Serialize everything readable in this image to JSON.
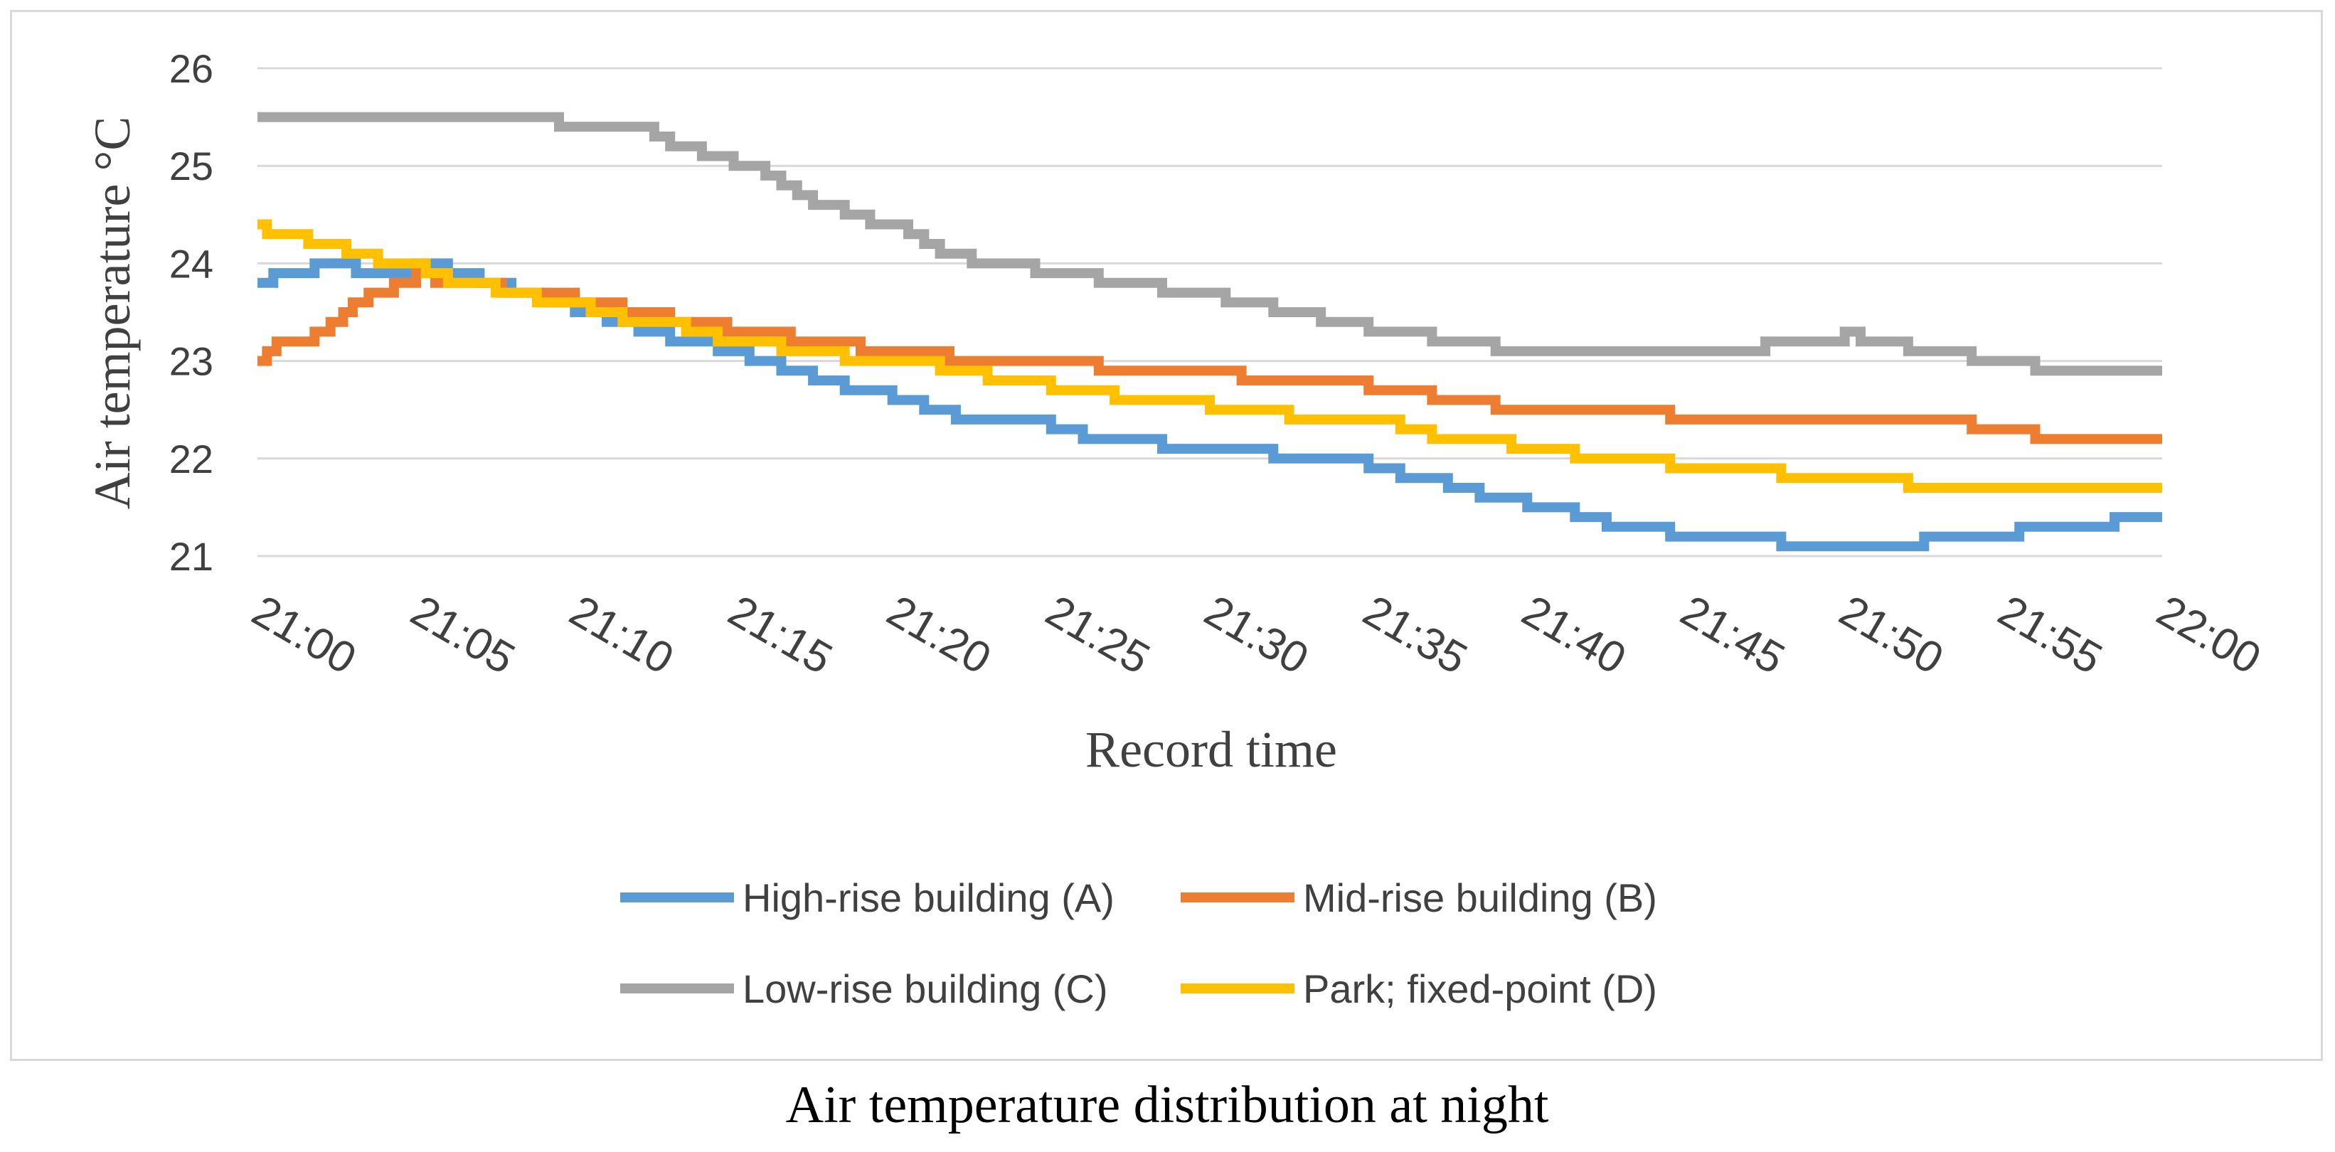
{
  "chart_data": {
    "type": "line",
    "title": "",
    "caption": "Air temperature distribution at night",
    "xlabel": "Record time",
    "ylabel": "Air temperature °C",
    "ylim": [
      21,
      26
    ],
    "yticks": [
      "21",
      "22",
      "23",
      "24",
      "25",
      "26"
    ],
    "x_ticks": [
      "21:00",
      "21:05",
      "21:10",
      "21:15",
      "21:20",
      "21:25",
      "21:30",
      "21:35",
      "21:40",
      "21:45",
      "21:50",
      "21:55",
      "22:00"
    ],
    "x_range_minutes": [
      0,
      60
    ],
    "grid": true,
    "legend_position": "bottom",
    "series": [
      {
        "name": "High-rise building (A)",
        "color": "#5b9bd5",
        "points": [
          [
            0,
            23.8
          ],
          [
            0.5,
            23.9
          ],
          [
            1.8,
            24.0
          ],
          [
            3.1,
            23.9
          ],
          [
            5.0,
            24.0
          ],
          [
            6.0,
            23.9
          ],
          [
            7.0,
            23.8
          ],
          [
            8.0,
            23.7
          ],
          [
            9.0,
            23.6
          ],
          [
            10.0,
            23.5
          ],
          [
            11.0,
            23.4
          ],
          [
            12.0,
            23.3
          ],
          [
            13.0,
            23.2
          ],
          [
            14.5,
            23.1
          ],
          [
            15.5,
            23.0
          ],
          [
            16.5,
            22.9
          ],
          [
            17.5,
            22.8
          ],
          [
            18.5,
            22.7
          ],
          [
            20.0,
            22.6
          ],
          [
            21.0,
            22.5
          ],
          [
            22.0,
            22.4
          ],
          [
            25.0,
            22.3
          ],
          [
            26.0,
            22.2
          ],
          [
            28.5,
            22.1
          ],
          [
            32.0,
            22.0
          ],
          [
            35.0,
            21.9
          ],
          [
            36.0,
            21.8
          ],
          [
            37.5,
            21.7
          ],
          [
            38.5,
            21.6
          ],
          [
            40.0,
            21.5
          ],
          [
            41.5,
            21.4
          ],
          [
            42.5,
            21.3
          ],
          [
            44.5,
            21.2
          ],
          [
            48.0,
            21.1
          ],
          [
            52.5,
            21.2
          ],
          [
            55.5,
            21.3
          ],
          [
            58.5,
            21.4
          ],
          [
            60.0,
            21.4
          ]
        ]
      },
      {
        "name": "Mid-rise building (B)",
        "color": "#ed7d31",
        "points": [
          [
            0,
            23.0
          ],
          [
            0.3,
            23.1
          ],
          [
            0.6,
            23.2
          ],
          [
            1.8,
            23.3
          ],
          [
            2.3,
            23.4
          ],
          [
            2.7,
            23.5
          ],
          [
            3.0,
            23.6
          ],
          [
            3.5,
            23.7
          ],
          [
            4.3,
            23.8
          ],
          [
            5.0,
            23.9
          ],
          [
            5.6,
            23.8
          ],
          [
            7.7,
            23.7
          ],
          [
            10.0,
            23.6
          ],
          [
            11.5,
            23.5
          ],
          [
            13.0,
            23.4
          ],
          [
            14.8,
            23.3
          ],
          [
            16.8,
            23.2
          ],
          [
            19.0,
            23.1
          ],
          [
            21.8,
            23.0
          ],
          [
            26.5,
            22.9
          ],
          [
            31.0,
            22.8
          ],
          [
            35.0,
            22.7
          ],
          [
            37.0,
            22.6
          ],
          [
            39.0,
            22.5
          ],
          [
            44.5,
            22.4
          ],
          [
            54.0,
            22.3
          ],
          [
            56.0,
            22.2
          ],
          [
            60.0,
            22.2
          ]
        ]
      },
      {
        "name": "Low-rise building (C)",
        "color": "#a5a5a5",
        "points": [
          [
            0,
            25.5
          ],
          [
            9.5,
            25.4
          ],
          [
            12.5,
            25.3
          ],
          [
            13.0,
            25.2
          ],
          [
            14.0,
            25.1
          ],
          [
            15.0,
            25.0
          ],
          [
            16.0,
            24.9
          ],
          [
            16.5,
            24.8
          ],
          [
            17.0,
            24.7
          ],
          [
            17.5,
            24.6
          ],
          [
            18.5,
            24.5
          ],
          [
            19.3,
            24.4
          ],
          [
            20.5,
            24.3
          ],
          [
            21.0,
            24.2
          ],
          [
            21.5,
            24.1
          ],
          [
            22.5,
            24.0
          ],
          [
            24.5,
            23.9
          ],
          [
            26.5,
            23.8
          ],
          [
            28.5,
            23.7
          ],
          [
            30.5,
            23.6
          ],
          [
            32.0,
            23.5
          ],
          [
            33.5,
            23.4
          ],
          [
            35.0,
            23.3
          ],
          [
            37.0,
            23.2
          ],
          [
            39.0,
            23.1
          ],
          [
            47.5,
            23.2
          ],
          [
            50.0,
            23.3
          ],
          [
            50.5,
            23.2
          ],
          [
            52.0,
            23.1
          ],
          [
            54.0,
            23.0
          ],
          [
            56.0,
            22.9
          ],
          [
            60.0,
            22.9
          ]
        ]
      },
      {
        "name": "Park; fixed-point (D)",
        "color": "#ffc000",
        "points": [
          [
            0,
            24.4
          ],
          [
            0.3,
            24.3
          ],
          [
            1.6,
            24.2
          ],
          [
            2.8,
            24.1
          ],
          [
            3.8,
            24.0
          ],
          [
            5.3,
            23.9
          ],
          [
            6.0,
            23.8
          ],
          [
            7.5,
            23.7
          ],
          [
            8.8,
            23.6
          ],
          [
            10.5,
            23.5
          ],
          [
            11.5,
            23.4
          ],
          [
            13.5,
            23.3
          ],
          [
            14.5,
            23.2
          ],
          [
            16.5,
            23.1
          ],
          [
            18.5,
            23.0
          ],
          [
            21.5,
            22.9
          ],
          [
            23.0,
            22.8
          ],
          [
            25.0,
            22.7
          ],
          [
            27.0,
            22.6
          ],
          [
            30.0,
            22.5
          ],
          [
            32.5,
            22.4
          ],
          [
            36.0,
            22.3
          ],
          [
            37.0,
            22.2
          ],
          [
            39.5,
            22.1
          ],
          [
            41.5,
            22.0
          ],
          [
            44.5,
            21.9
          ],
          [
            48.0,
            21.8
          ],
          [
            52.0,
            21.7
          ],
          [
            60.0,
            21.7
          ]
        ]
      }
    ]
  }
}
